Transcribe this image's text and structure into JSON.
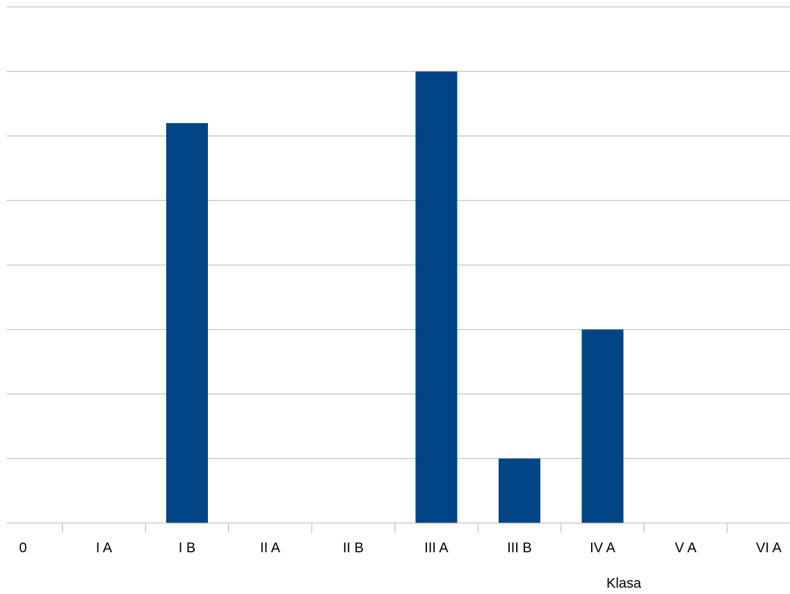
{
  "chart_data": {
    "type": "bar",
    "categories": [
      "0",
      "I A",
      "I B",
      "II A",
      "II B",
      "III A",
      "III B",
      "IV A",
      "V A",
      "VI A"
    ],
    "values": [
      0,
      0,
      6.2,
      0,
      0,
      7,
      1,
      3,
      0,
      0
    ],
    "xlabel": "Klasa",
    "ylim": [
      0,
      8
    ],
    "grid": true,
    "series_color": "#004586",
    "grid_color": "#b3b3b3",
    "legend": "none"
  }
}
